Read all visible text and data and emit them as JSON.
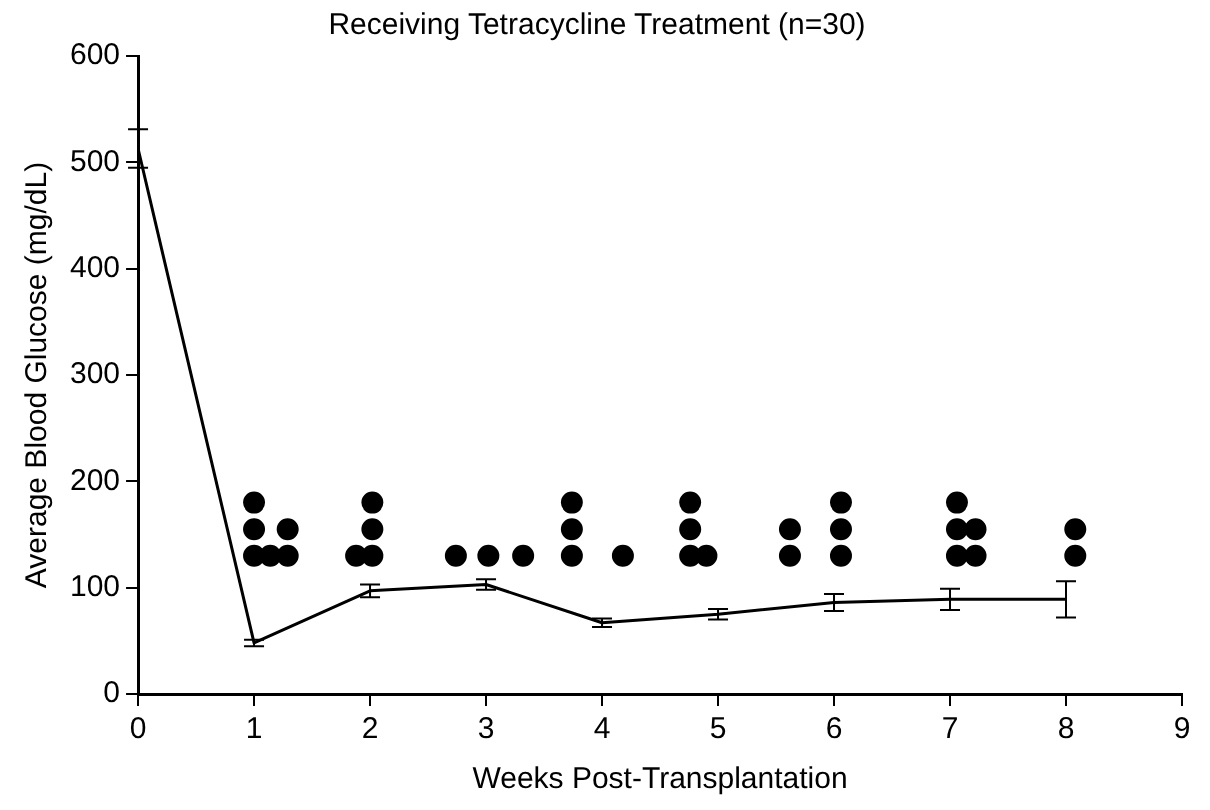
{
  "chart_data": {
    "type": "line",
    "title": "Receiving Tetracycline Treatment (n=30)",
    "xlabel": "Weeks Post-Transplantation",
    "ylabel": "Average Blood Glucose (mg/dL)",
    "xlim": [
      0,
      9
    ],
    "xticks": [
      0,
      1,
      2,
      3,
      4,
      5,
      6,
      7,
      8,
      9
    ],
    "ylim": [
      0,
      600
    ],
    "yticks": [
      0,
      100,
      200,
      300,
      400,
      500,
      600
    ],
    "grid": false,
    "legend": false,
    "series": [
      {
        "type": "line",
        "color": "#000000",
        "marker": "none",
        "x": [
          0,
          1,
          2,
          3,
          4,
          5,
          6,
          7,
          8
        ],
        "values": [
          513,
          48,
          97,
          103,
          67,
          75,
          86,
          89,
          89
        ],
        "errors": [
          18,
          3,
          6,
          5,
          4,
          5,
          8,
          10,
          17
        ]
      },
      {
        "type": "scatter",
        "color": "#000000",
        "marker": "circle",
        "x": [
          1.0,
          1.0,
          1.0,
          1.14,
          1.29,
          1.29,
          1.88,
          2.02,
          2.02,
          2.02,
          2.74,
          3.02,
          3.32,
          3.74,
          3.74,
          3.74,
          4.18,
          4.76,
          4.76,
          4.76,
          4.9,
          5.62,
          5.62,
          6.06,
          6.06,
          6.06,
          7.06,
          7.06,
          7.06,
          7.22,
          7.22,
          8.08,
          8.08
        ],
        "values": [
          130,
          155,
          180,
          130,
          130,
          155,
          130,
          130,
          155,
          180,
          130,
          130,
          130,
          130,
          155,
          180,
          130,
          130,
          155,
          180,
          130,
          130,
          155,
          130,
          155,
          180,
          130,
          155,
          180,
          130,
          155,
          130,
          155
        ]
      }
    ]
  }
}
